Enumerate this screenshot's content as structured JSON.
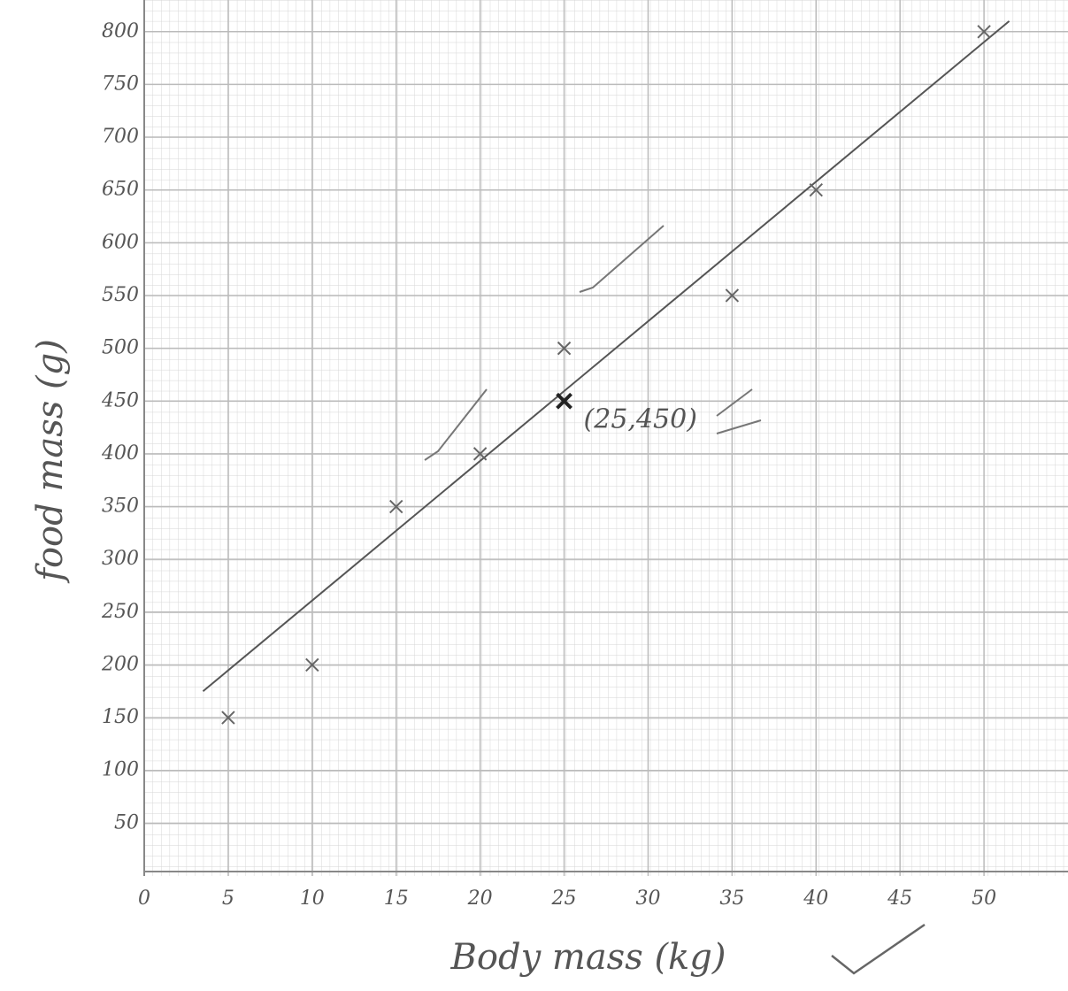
{
  "chart_data": {
    "type": "scatter",
    "x_label": "Body mass (kg)",
    "y_label": "food mass (g)",
    "xlim": [
      0,
      55
    ],
    "ylim": [
      0,
      830
    ],
    "xticks": [
      0,
      5,
      10,
      15,
      20,
      25,
      30,
      35,
      40,
      45,
      50
    ],
    "yticks": [
      50,
      100,
      150,
      200,
      250,
      300,
      350,
      400,
      450,
      500,
      550,
      600,
      650,
      700,
      750,
      800
    ],
    "grid": true,
    "series": [
      {
        "color": "#666666",
        "x": [
          5,
          10,
          15,
          20,
          25,
          35,
          40,
          50
        ],
        "values": [
          150,
          200,
          350,
          400,
          500,
          550,
          650,
          800
        ]
      }
    ],
    "mean_point": {
      "x": 25,
      "y": 450,
      "label": "(25,450)",
      "color": "#222222"
    },
    "line_of_best_fit": {
      "color": "#555555",
      "x": [
        3.5,
        51.5
      ],
      "y": [
        175,
        810
      ]
    }
  }
}
